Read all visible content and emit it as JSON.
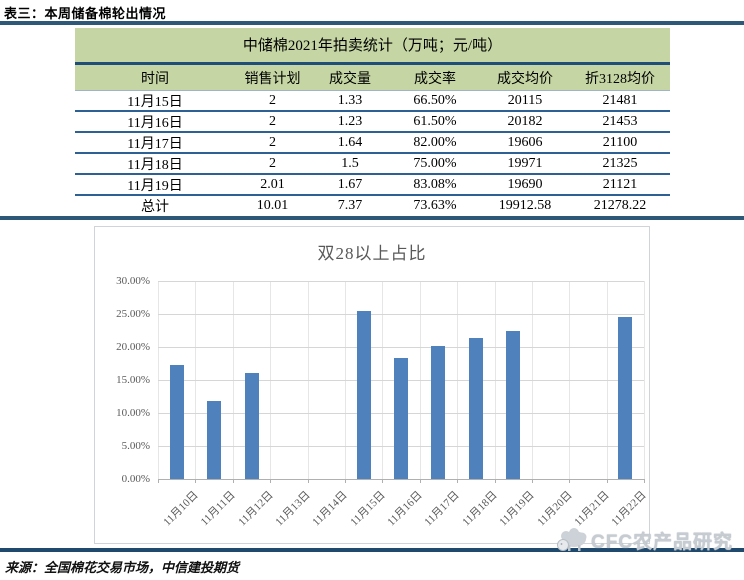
{
  "page": {
    "header_title": "表三：本周储备棉轮出情况",
    "footer_source": "来源：全国棉花交易市场，中信建投期货",
    "watermark": "CFC农产品研究"
  },
  "table": {
    "title": "中储棉2021年拍卖统计（万吨；元/吨）",
    "columns": [
      "时间",
      "销售计划",
      "成交量",
      "成交率",
      "成交均价",
      "折3128均价"
    ],
    "rows": [
      [
        "11月15日",
        "2",
        "1.33",
        "66.50%",
        "20115",
        "21481"
      ],
      [
        "11月16日",
        "2",
        "1.23",
        "61.50%",
        "20182",
        "21453"
      ],
      [
        "11月17日",
        "2",
        "1.64",
        "82.00%",
        "19606",
        "21100"
      ],
      [
        "11月18日",
        "2",
        "1.5",
        "75.00%",
        "19971",
        "21325"
      ],
      [
        "11月19日",
        "2.01",
        "1.67",
        "83.08%",
        "19690",
        "21121"
      ],
      [
        "总计",
        "10.01",
        "7.37",
        "73.63%",
        "19912.58",
        "21278.22"
      ]
    ]
  },
  "chart_data": {
    "type": "bar",
    "title": "双28以上占比",
    "categories": [
      "11月10日",
      "11月11日",
      "11月12日",
      "11月13日",
      "11月14日",
      "11月15日",
      "11月16日",
      "11月17日",
      "11月18日",
      "11月19日",
      "11月20日",
      "11月21日",
      "11月22日"
    ],
    "values": [
      17.3,
      11.8,
      16.0,
      0,
      0,
      25.5,
      18.3,
      20.1,
      21.4,
      22.4,
      0,
      0,
      24.6
    ],
    "xlabel": "",
    "ylabel": "",
    "ylim": [
      0,
      30
    ],
    "ytick_step": 5,
    "ytick_labels": [
      "0.00%",
      "5.00%",
      "10.00%",
      "15.00%",
      "20.00%",
      "25.00%",
      "30.00%"
    ],
    "bar_color": "#4f81bd",
    "grid": "horizontal-and-vertical",
    "legend_position": "none"
  },
  "colors": {
    "accent_line": "#2d5878",
    "table_header_bg": "#c5d6a4",
    "row_divider": "#2e6093",
    "bar": "#4f81bd",
    "axis_text": "#595959"
  }
}
